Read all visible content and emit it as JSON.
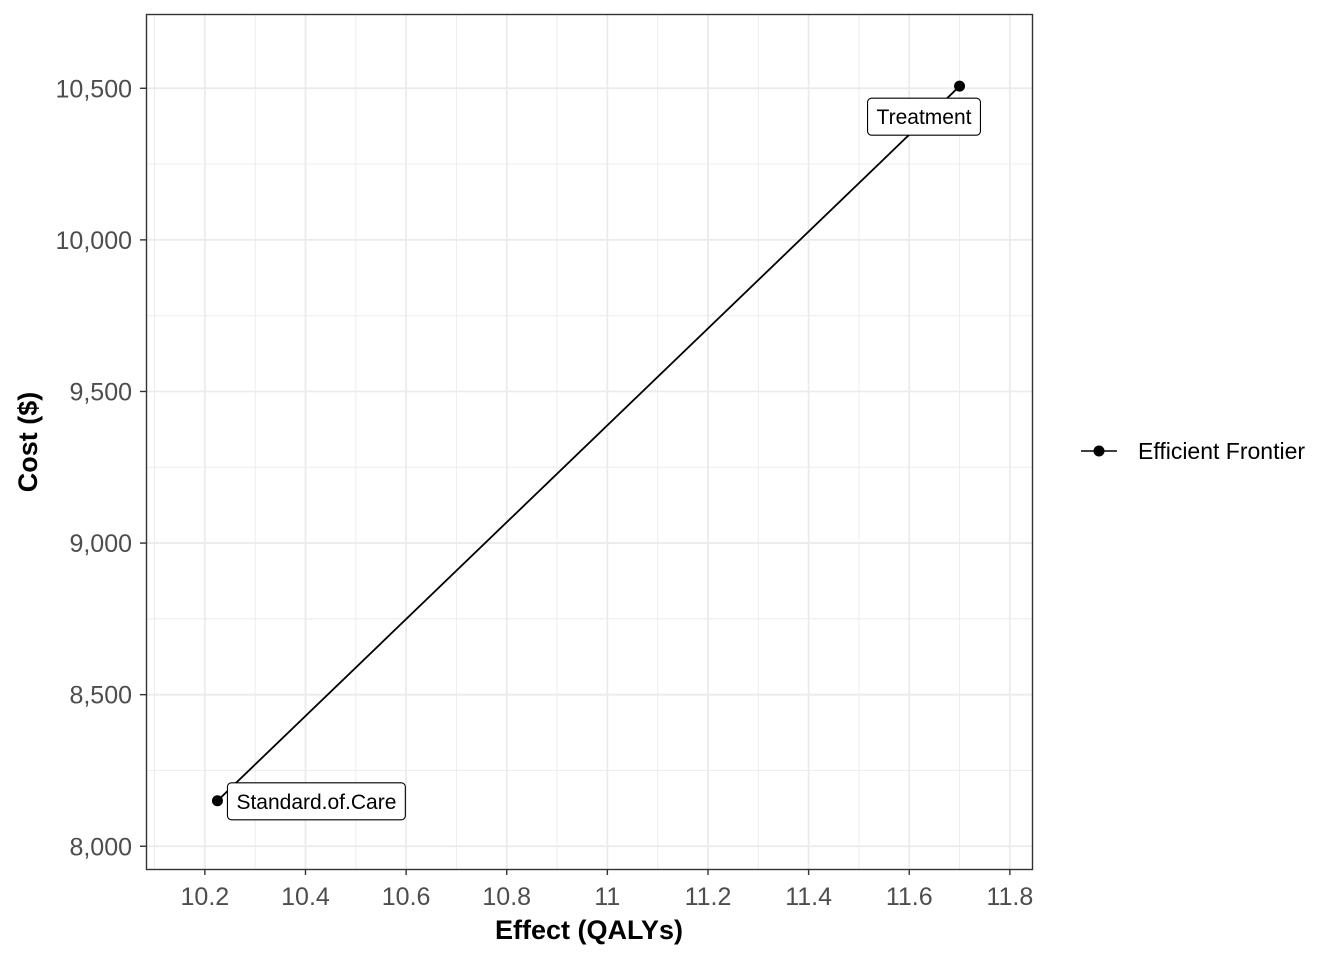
{
  "chart_data": {
    "type": "line",
    "title": "",
    "xlabel": "Effect (QALYs)",
    "ylabel": "Cost ($)",
    "xlim": [
      10.083,
      11.844
    ],
    "ylim": [
      7925,
      10745
    ],
    "x_ticks": [
      10.2,
      10.4,
      10.6,
      10.8,
      11.0,
      11.2,
      11.4,
      11.6,
      11.8
    ],
    "x_tick_labels": [
      "10.2",
      "10.4",
      "10.6",
      "10.8",
      "11",
      "11.2",
      "11.4",
      "11.6",
      "11.8"
    ],
    "y_ticks": [
      8000,
      8500,
      9000,
      9500,
      10000,
      10500
    ],
    "y_tick_labels": [
      "8,000",
      "8,500",
      "9,000",
      "9,500",
      "10,000",
      "10,500"
    ],
    "grid": true,
    "legend_position": "right",
    "series": [
      {
        "name": "Efficient Frontier",
        "points": [
          {
            "label": "Standard.of.Care",
            "x": 10.225,
            "y": 8150
          },
          {
            "label": "Treatment",
            "x": 11.7,
            "y": 10507
          }
        ]
      }
    ]
  },
  "colors": {
    "series": "#000000",
    "grid": "#ebebeb",
    "panel_border": "#333333",
    "tick_label": "#4d4d4d"
  }
}
